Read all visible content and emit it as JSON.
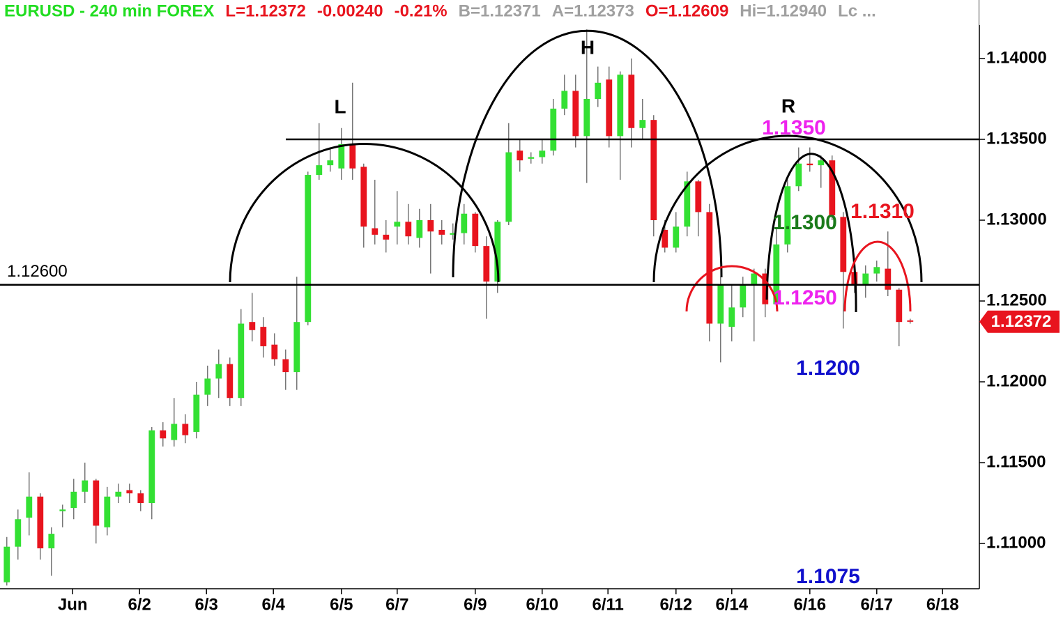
{
  "chart_data": {
    "type": "candlestick",
    "header": [
      {
        "text": "EURUSD - 240 min  FOREX",
        "color": "#22dd22"
      },
      {
        "text": "L=1.12372",
        "color": "#e8141e"
      },
      {
        "text": "-0.00240",
        "color": "#e8141e"
      },
      {
        "text": "-0.21%",
        "color": "#e8141e"
      },
      {
        "text": "B=1.12371",
        "color": "#a0a0a0"
      },
      {
        "text": "A=1.12373",
        "color": "#a0a0a0"
      },
      {
        "text": "O=1.12609",
        "color": "#e8141e"
      },
      {
        "text": "Hi=1.12940",
        "color": "#a0a0a0"
      },
      {
        "text": "Lc ...",
        "color": "#a0a0a0"
      }
    ],
    "up_color": "#33e033",
    "down_color": "#e8141e",
    "open": [
      1.1076,
      1.1098,
      1.1116,
      1.1129,
      1.1097,
      1.112,
      1.1122,
      1.1132,
      1.1139,
      1.111,
      1.1129,
      1.1133,
      1.1131,
      1.1125,
      1.117,
      1.1164,
      1.1174,
      1.1169,
      1.1192,
      1.1202,
      1.1211,
      1.119,
      1.1237,
      1.1234,
      1.1223,
      1.1214,
      1.1206,
      1.1237,
      1.1328,
      1.1334,
      1.1332,
      1.1347,
      1.1333,
      1.1295,
      1.1291,
      1.1296,
      1.1299,
      1.1289,
      1.13,
      1.1294,
      1.1291,
      1.1292,
      1.1304,
      1.1284,
      1.1262,
      1.1299,
      1.1343,
      1.1338,
      1.1339,
      1.1343,
      1.1369,
      1.138,
      1.1352,
      1.1375,
      1.1387,
      1.1352,
      1.139,
      1.1357,
      1.1362,
      1.1294,
      1.1283,
      1.1296,
      1.1324,
      1.1305,
      1.1236,
      1.1234,
      1.1246,
      1.126,
      1.1267,
      1.1248,
      1.1285,
      1.1321,
      1.1335,
      1.1334,
      1.1337,
      1.1302,
      1.1268,
      1.126,
      1.1267,
      1.127,
      1.1257,
      1.1238
    ],
    "high": [
      1.1104,
      1.1121,
      1.1144,
      1.1131,
      1.111,
      1.1124,
      1.114,
      1.115,
      1.114,
      1.1135,
      1.1137,
      1.1137,
      1.1133,
      1.1172,
      1.1175,
      1.119,
      1.118,
      1.12,
      1.121,
      1.122,
      1.1215,
      1.1245,
      1.1255,
      1.124,
      1.123,
      1.122,
      1.1265,
      1.133,
      1.136,
      1.1345,
      1.1357,
      1.1385,
      1.1335,
      1.1325,
      1.13,
      1.1318,
      1.131,
      1.1307,
      1.131,
      1.13,
      1.1298,
      1.131,
      1.1305,
      1.129,
      1.13,
      1.136,
      1.135,
      1.1342,
      1.135,
      1.1375,
      1.139,
      1.139,
      1.1418,
      1.1395,
      1.1395,
      1.1392,
      1.14,
      1.1375,
      1.1365,
      1.13,
      1.1305,
      1.133,
      1.1325,
      1.131,
      1.1265,
      1.126,
      1.1265,
      1.127,
      1.127,
      1.1295,
      1.1325,
      1.1345,
      1.1345,
      1.134,
      1.134,
      1.1305,
      1.1272,
      1.1272,
      1.1275,
      1.1293,
      1.1258,
      1.1239
    ],
    "low": [
      1.1074,
      1.109,
      1.1105,
      1.109,
      1.108,
      1.111,
      1.1115,
      1.1125,
      1.11,
      1.1105,
      1.1125,
      1.1125,
      1.112,
      1.1115,
      1.116,
      1.116,
      1.1162,
      1.1165,
      1.1185,
      1.119,
      1.1185,
      1.1185,
      1.1225,
      1.1215,
      1.121,
      1.1195,
      1.1195,
      1.1235,
      1.1325,
      1.133,
      1.1325,
      1.1325,
      1.1283,
      1.1285,
      1.128,
      1.1285,
      1.1285,
      1.1283,
      1.1267,
      1.1285,
      1.1288,
      1.1285,
      1.128,
      1.1239,
      1.1255,
      1.1297,
      1.133,
      1.1335,
      1.1335,
      1.134,
      1.1365,
      1.1345,
      1.1323,
      1.137,
      1.1345,
      1.1325,
      1.1345,
      1.135,
      1.129,
      1.128,
      1.128,
      1.129,
      1.129,
      1.1225,
      1.1212,
      1.1225,
      1.124,
      1.1225,
      1.124,
      1.1245,
      1.128,
      1.1318,
      1.133,
      1.132,
      1.13,
      1.1233,
      1.1255,
      1.1252,
      1.1262,
      1.1253,
      1.1222,
      1.1236
    ],
    "close": [
      1.1098,
      1.1115,
      1.1129,
      1.1097,
      1.1106,
      1.1121,
      1.1132,
      1.1139,
      1.1111,
      1.1129,
      1.1132,
      1.1131,
      1.1125,
      1.117,
      1.1165,
      1.1174,
      1.1167,
      1.1192,
      1.1202,
      1.1211,
      1.119,
      1.1236,
      1.1232,
      1.1222,
      1.1214,
      1.1206,
      1.1237,
      1.1328,
      1.1334,
      1.1337,
      1.1347,
      1.1332,
      1.1296,
      1.1291,
      1.1288,
      1.1299,
      1.129,
      1.13,
      1.1293,
      1.1291,
      1.1292,
      1.1304,
      1.1284,
      1.1262,
      1.1299,
      1.1342,
      1.1337,
      1.1339,
      1.1343,
      1.1369,
      1.138,
      1.1352,
      1.1375,
      1.1385,
      1.1352,
      1.139,
      1.1357,
      1.1362,
      1.13,
      1.1283,
      1.1296,
      1.1324,
      1.1305,
      1.1236,
      1.126,
      1.1246,
      1.126,
      1.1267,
      1.1248,
      1.1285,
      1.1321,
      1.1335,
      1.1334,
      1.1337,
      1.1303,
      1.1268,
      1.126,
      1.1267,
      1.1271,
      1.1257,
      1.1237,
      1.12372
    ],
    "xlim": [
      -0.3,
      87.2
    ],
    "xticks": [
      {
        "value": 5.9,
        "label": "Jun"
      },
      {
        "value": 11.9,
        "label": "6/2"
      },
      {
        "value": 17.9,
        "label": "6/3"
      },
      {
        "value": 23.9,
        "label": "6/4"
      },
      {
        "value": 30.0,
        "label": "6/5"
      },
      {
        "value": 35.0,
        "label": "6/7"
      },
      {
        "value": 42.0,
        "label": "6/9"
      },
      {
        "value": 48.0,
        "label": "6/10"
      },
      {
        "value": 53.9,
        "label": "6/11"
      },
      {
        "value": 60.0,
        "label": "6/12"
      },
      {
        "value": 65.0,
        "label": "6/14"
      },
      {
        "value": 72.0,
        "label": "6/16"
      },
      {
        "value": 78.0,
        "label": "6/17"
      },
      {
        "value": 83.9,
        "label": "6/18"
      }
    ],
    "ylim": [
      1.1072,
      1.14362
    ],
    "yticks": [
      {
        "value": 1.11,
        "label": "1.11000"
      },
      {
        "value": 1.115,
        "label": "1.11500"
      },
      {
        "value": 1.12,
        "label": "1.12000"
      },
      {
        "value": 1.125,
        "label": "1.12500"
      },
      {
        "value": 1.13,
        "label": "1.13000"
      },
      {
        "value": 1.135,
        "label": "1.13500"
      },
      {
        "value": 1.14,
        "label": "1.14000"
      }
    ],
    "last_price": 1.12372,
    "hlines": [
      {
        "value": 1.135
      },
      {
        "value": 1.126,
        "label": "1.12600"
      }
    ],
    "annotations": [
      {
        "text": "L",
        "color": "#000000"
      },
      {
        "text": "H",
        "color": "#000000"
      },
      {
        "text": "R",
        "color": "#000000"
      },
      {
        "text": "1.1350",
        "color": "#ee22ee"
      },
      {
        "text": "1.1300",
        "color": "#1a7a1a"
      },
      {
        "text": "1.1310",
        "color": "#e8141e"
      },
      {
        "text": "1.1250",
        "color": "#ee22ee"
      },
      {
        "text": "1.1200",
        "color": "#1010cc"
      },
      {
        "text": "1.1075",
        "color": "#1010cc"
      }
    ]
  }
}
